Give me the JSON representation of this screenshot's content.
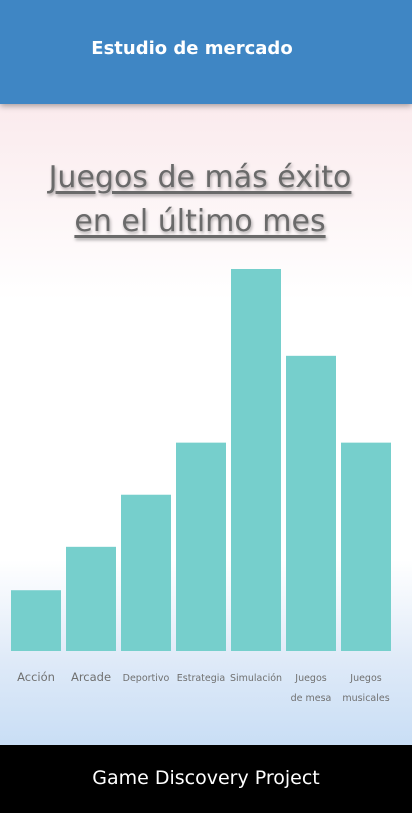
{
  "header": {
    "title": "Estudio de mercado"
  },
  "headline": {
    "line1": "Juegos de más éxito",
    "line2": "en el último mes"
  },
  "chart_data": {
    "type": "bar",
    "categories": [
      [
        "Acción"
      ],
      [
        "Arcade"
      ],
      [
        "Deportivo"
      ],
      [
        "Estrategia"
      ],
      [
        "Simulación"
      ],
      [
        "Juegos",
        "de mesa"
      ],
      [
        "Juegos",
        "musicales"
      ]
    ],
    "values": [
      14,
      24,
      36,
      48,
      88,
      68,
      48
    ],
    "ylim": [
      0,
      88
    ],
    "bar_color": "#76cfcc",
    "grid": false,
    "axis_ticks": false
  },
  "footer": {
    "text": "Game Discovery Project"
  }
}
